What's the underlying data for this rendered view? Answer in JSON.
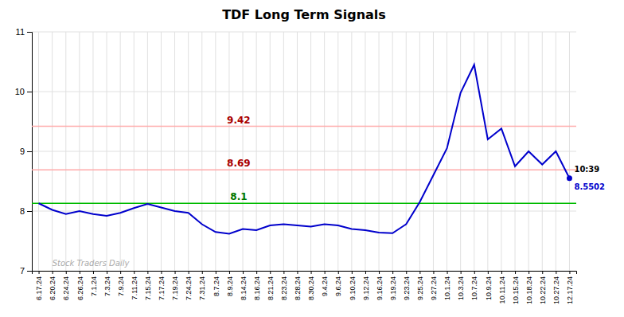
{
  "chart_data": {
    "type": "line",
    "title": "TDF Long Term Signals",
    "categories": [
      "6.17.24",
      "6.20.24",
      "6.24.24",
      "6.26.24",
      "7.1.24",
      "7.3.24",
      "7.9.24",
      "7.11.24",
      "7.15.24",
      "7.17.24",
      "7.19.24",
      "7.24.24",
      "7.31.24",
      "8.7.24",
      "8.9.24",
      "8.14.24",
      "8.16.24",
      "8.21.24",
      "8.23.24",
      "8.28.24",
      "8.30.24",
      "9.4.24",
      "9.6.24",
      "9.10.24",
      "9.12.24",
      "9.16.24",
      "9.19.24",
      "9.23.24",
      "9.25.24",
      "9.27.24",
      "10.1.24",
      "10.3.24",
      "10.7.24",
      "10.9.24",
      "10.11.24",
      "10.15.24",
      "10.18.24",
      "10.22.24",
      "10.27.24",
      "12.17.24"
    ],
    "values": [
      8.13,
      8.02,
      7.95,
      8.0,
      7.95,
      7.92,
      7.97,
      8.05,
      8.12,
      8.06,
      8.0,
      7.97,
      7.78,
      7.65,
      7.62,
      7.7,
      7.68,
      7.76,
      7.78,
      7.76,
      7.74,
      7.78,
      7.76,
      7.7,
      7.68,
      7.64,
      7.63,
      7.78,
      8.15,
      8.6,
      9.05,
      9.98,
      10.45,
      9.2,
      9.38,
      8.75,
      9.0,
      8.78,
      9.0,
      8.5502
    ],
    "color": "#0000cc",
    "hlines": [
      {
        "value": 8.13,
        "color": "#00bb00",
        "label": "8.1",
        "label_color": "#007700"
      },
      {
        "value": 8.69,
        "color": "#ffaaaa",
        "label": "8.69",
        "label_color": "#aa0000"
      },
      {
        "value": 9.42,
        "color": "#ffaaaa",
        "label": "9.42",
        "label_color": "#aa0000"
      }
    ],
    "annotations": [
      {
        "text": "10:39",
        "color": "#000000"
      },
      {
        "text": "8.5502",
        "color": "#0000cc"
      }
    ],
    "watermark": {
      "text": "Stock Traders Daily",
      "color": "#aaaaaa"
    },
    "ylim": [
      7,
      11
    ],
    "yticks": [
      7,
      8,
      9,
      10,
      11
    ],
    "grid": true
  }
}
